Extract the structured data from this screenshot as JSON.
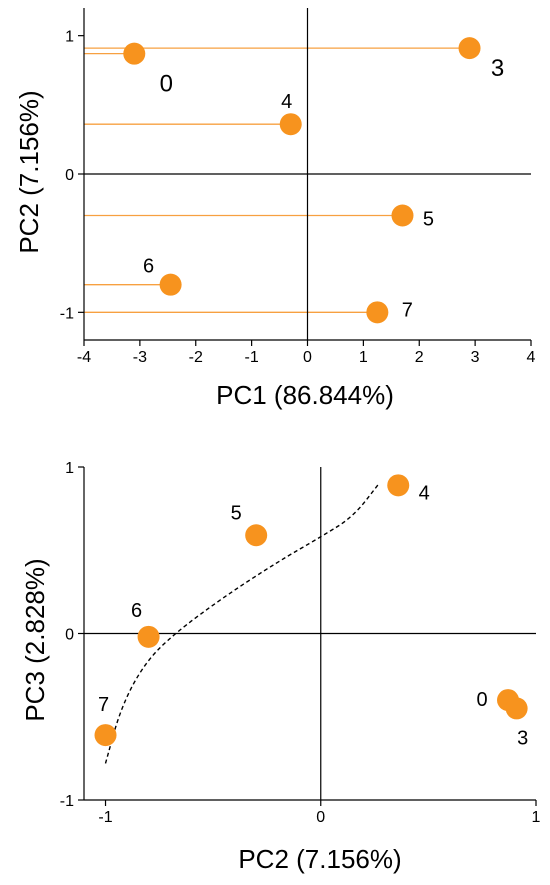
{
  "colors": {
    "marker": "#f7931e",
    "leader": "#f7a040",
    "axis": "#000000"
  },
  "chart_data": [
    {
      "type": "scatter",
      "xlabel": "PC1 (86.844%)",
      "ylabel": "PC2 (7.156%)",
      "xlim": [
        -4,
        4
      ],
      "ylim": [
        -1.2,
        1.2
      ],
      "xticks": [
        -4,
        -3,
        -2,
        -1,
        0,
        1,
        2,
        3,
        4
      ],
      "xtick_labels": [
        "-4",
        "-3",
        "-2",
        "-1",
        "0",
        "1",
        "2",
        "3",
        "4"
      ],
      "yticks": [
        -1,
        0,
        1
      ],
      "ytick_labels": [
        "-1",
        "0",
        "1"
      ],
      "leader_lines": true,
      "points": [
        {
          "label": "0",
          "x": -3.1,
          "y": 0.87
        },
        {
          "label": "3",
          "x": 2.9,
          "y": 0.91
        },
        {
          "label": "4",
          "x": -0.3,
          "y": 0.36
        },
        {
          "label": "5",
          "x": 1.7,
          "y": -0.3
        },
        {
          "label": "6",
          "x": -2.45,
          "y": -0.8
        },
        {
          "label": "7",
          "x": 1.25,
          "y": -1.0
        }
      ]
    },
    {
      "type": "scatter",
      "xlabel": "PC2 (7.156%)",
      "ylabel": "PC3 (2.828%)",
      "xlim": [
        -1.1,
        1.0
      ],
      "ylim": [
        -1.0,
        1.0
      ],
      "xticks": [
        -1,
        0,
        1
      ],
      "xtick_labels": [
        "-1",
        "0",
        "1"
      ],
      "yticks": [
        -1,
        0,
        1
      ],
      "ytick_labels": [
        "-1",
        "0",
        "1"
      ],
      "trend_curve": "dashed",
      "points": [
        {
          "label": "0",
          "x": 0.87,
          "y": -0.4
        },
        {
          "label": "3",
          "x": 0.91,
          "y": -0.45
        },
        {
          "label": "4",
          "x": 0.36,
          "y": 0.89
        },
        {
          "label": "5",
          "x": -0.3,
          "y": 0.59
        },
        {
          "label": "6",
          "x": -0.8,
          "y": -0.02
        },
        {
          "label": "7",
          "x": -1.0,
          "y": -0.61
        }
      ]
    }
  ]
}
